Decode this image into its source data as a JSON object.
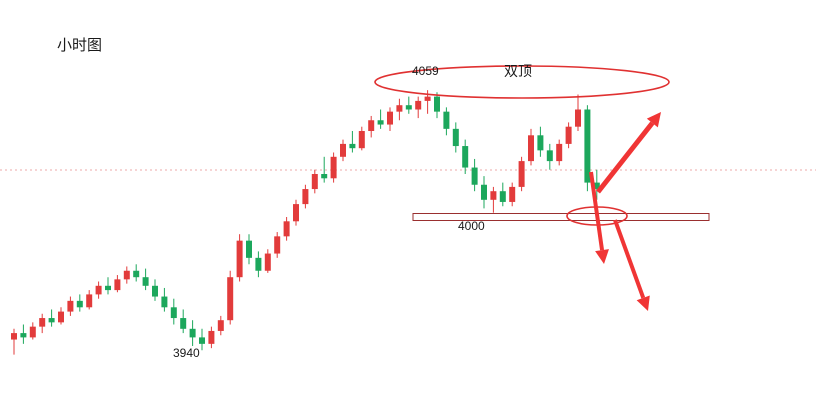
{
  "chart_data": {
    "type": "candlestick",
    "title": "小时图",
    "xlabel": "",
    "ylabel": "",
    "ylim": [
      3930,
      4065
    ],
    "grid": false,
    "legend": false,
    "colors": {
      "up": "#e23b3b",
      "down": "#1ca75c",
      "annotation": "#e03131",
      "arrow": "#f03535",
      "band": "#9a2f2f",
      "dotted": "#eda8a8"
    },
    "annotations": {
      "peak_label": "4059",
      "pattern_label": "双顶",
      "support_label": "4000",
      "low_label": "3940"
    },
    "candles": [
      [
        3943,
        3948,
        3936,
        3946
      ],
      [
        3946,
        3950,
        3941,
        3944
      ],
      [
        3944,
        3951,
        3943,
        3949
      ],
      [
        3949,
        3955,
        3946,
        3953
      ],
      [
        3953,
        3957,
        3949,
        3951
      ],
      [
        3951,
        3958,
        3950,
        3956
      ],
      [
        3956,
        3963,
        3954,
        3961
      ],
      [
        3961,
        3964,
        3956,
        3958
      ],
      [
        3958,
        3966,
        3957,
        3964
      ],
      [
        3964,
        3970,
        3962,
        3968
      ],
      [
        3968,
        3972,
        3964,
        3966
      ],
      [
        3966,
        3973,
        3965,
        3971
      ],
      [
        3971,
        3977,
        3969,
        3975
      ],
      [
        3975,
        3978,
        3970,
        3972
      ],
      [
        3972,
        3976,
        3966,
        3968
      ],
      [
        3968,
        3971,
        3961,
        3963
      ],
      [
        3963,
        3967,
        3956,
        3958
      ],
      [
        3958,
        3962,
        3950,
        3953
      ],
      [
        3953,
        3957,
        3946,
        3948
      ],
      [
        3948,
        3952,
        3940,
        3944
      ],
      [
        3944,
        3948,
        3938,
        3941
      ],
      [
        3941,
        3949,
        3939,
        3947
      ],
      [
        3947,
        3954,
        3945,
        3952
      ],
      [
        3952,
        3975,
        3950,
        3972
      ],
      [
        3972,
        3992,
        3970,
        3989
      ],
      [
        3989,
        3992,
        3978,
        3981
      ],
      [
        3981,
        3984,
        3972,
        3975
      ],
      [
        3975,
        3985,
        3974,
        3983
      ],
      [
        3983,
        3993,
        3981,
        3991
      ],
      [
        3991,
        4000,
        3989,
        3998
      ],
      [
        3998,
        4008,
        3996,
        4006
      ],
      [
        4006,
        4015,
        4004,
        4013
      ],
      [
        4013,
        4022,
        4011,
        4020
      ],
      [
        4020,
        4028,
        4016,
        4018
      ],
      [
        4018,
        4030,
        4016,
        4028
      ],
      [
        4028,
        4036,
        4026,
        4034
      ],
      [
        4034,
        4040,
        4030,
        4032
      ],
      [
        4032,
        4042,
        4031,
        4040
      ],
      [
        4040,
        4047,
        4037,
        4045
      ],
      [
        4045,
        4050,
        4041,
        4043
      ],
      [
        4043,
        4051,
        4040,
        4049
      ],
      [
        4049,
        4055,
        4045,
        4052
      ],
      [
        4052,
        4056,
        4048,
        4050
      ],
      [
        4050,
        4056,
        4046,
        4054
      ],
      [
        4054,
        4059,
        4048,
        4056
      ],
      [
        4056,
        4058,
        4046,
        4049
      ],
      [
        4049,
        4051,
        4038,
        4041
      ],
      [
        4041,
        4044,
        4030,
        4033
      ],
      [
        4033,
        4036,
        4020,
        4023
      ],
      [
        4023,
        4027,
        4012,
        4015
      ],
      [
        4015,
        4019,
        4004,
        4008
      ],
      [
        4008,
        4014,
        4002,
        4012
      ],
      [
        4012,
        4016,
        4005,
        4007
      ],
      [
        4007,
        4016,
        4005,
        4014
      ],
      [
        4014,
        4028,
        4012,
        4026
      ],
      [
        4026,
        4041,
        4024,
        4038
      ],
      [
        4038,
        4042,
        4028,
        4031
      ],
      [
        4031,
        4034,
        4022,
        4026
      ],
      [
        4026,
        4036,
        4024,
        4034
      ],
      [
        4034,
        4044,
        4032,
        4042
      ],
      [
        4042,
        4057,
        4040,
        4050
      ],
      [
        4050,
        4052,
        4012,
        4016
      ],
      [
        4016,
        4022,
        4008,
        4013
      ]
    ]
  }
}
